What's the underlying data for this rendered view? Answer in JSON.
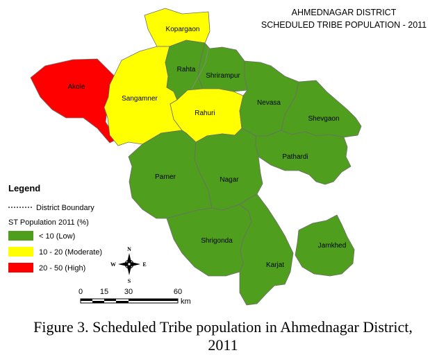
{
  "map": {
    "title_line1": "AHMEDNAGAR DISTRICT",
    "title_line2": "SCHEDULED TRIBE POPULATION - 2011",
    "colors": {
      "low": "#4f9e1e",
      "moderate": "#ffff00",
      "high": "#ff0000"
    },
    "talukas": [
      {
        "name": "Kopargaon",
        "category": "moderate"
      },
      {
        "name": "Akole",
        "category": "high"
      },
      {
        "name": "Sangamner",
        "category": "moderate"
      },
      {
        "name": "Rahta",
        "category": "low"
      },
      {
        "name": "Shrirampur",
        "category": "low"
      },
      {
        "name": "Rahuri",
        "category": "moderate"
      },
      {
        "name": "Nevasa",
        "category": "low"
      },
      {
        "name": "Shevgaon",
        "category": "low"
      },
      {
        "name": "Pathardi",
        "category": "low"
      },
      {
        "name": "Parner",
        "category": "low"
      },
      {
        "name": "Nagar",
        "category": "low"
      },
      {
        "name": "Shrigonda",
        "category": "low"
      },
      {
        "name": "Karjat",
        "category": "low"
      },
      {
        "name": "Jamkhed",
        "category": "low"
      }
    ]
  },
  "legend": {
    "title": "Legend",
    "boundary": "District Boundary",
    "subtitle": "ST Population 2011 (%)",
    "items": [
      {
        "label": "< 10 (Low)",
        "color": "#4f9e1e"
      },
      {
        "label": "10 - 20 (Moderate)",
        "color": "#ffff00"
      },
      {
        "label": "20 - 50 (High)",
        "color": "#ff0000"
      }
    ]
  },
  "compass": {
    "n": "N",
    "s": "S",
    "e": "E",
    "w": "W"
  },
  "scale": {
    "ticks": [
      "0",
      "15",
      "30",
      "60"
    ],
    "unit": "km"
  },
  "caption": {
    "line1": "Figure 3. Scheduled Tribe population in Ahmednagar District,",
    "line2": "2011"
  }
}
